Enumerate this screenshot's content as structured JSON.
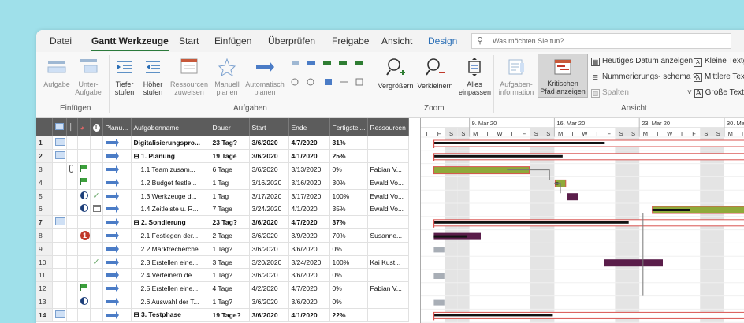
{
  "tabs": [
    "Datei",
    "Gantt Werkzeuge",
    "Start",
    "Einfügen",
    "Überprüfen",
    "Freigabe",
    "Ansicht",
    "Design"
  ],
  "tellme": {
    "icon": "lightbulb-icon",
    "placeholder": "Was möchten Sie tun?"
  },
  "ribbon": {
    "einfuegen": {
      "label": "Einfügen",
      "aufgabe": "Aufgabe",
      "unteraufgabe_1": "Unter-",
      "unteraufgabe_2": "Aufgabe"
    },
    "aufgaben": {
      "label": "Aufgaben",
      "tiefer_1": "Tiefer",
      "tiefer_2": "stufen",
      "hoeher_1": "Höher",
      "hoeher_2": "stufen",
      "ressourcen_1": "Ressourcen",
      "ressourcen_2": "zuweisen",
      "manuell_1": "Manuell",
      "manuell_2": "planen",
      "auto_1": "Automatisch",
      "auto_2": "planen"
    },
    "zoom": {
      "label": "Zoom",
      "vergroessern": "Vergrößern",
      "verkleinern": "Verkleinern",
      "alles_1": "Alles",
      "alles_2": "einpassen"
    },
    "ansicht": {
      "label": "Ansicht",
      "info_1": "Aufgaben-",
      "info_2": "information",
      "krit_1": "Kritischen",
      "krit_2": "Pfad anzeigen",
      "heutiges": "Heutiges Datum anzeigen",
      "nummerierung": "Nummerierungs- schema",
      "spalten": "Spalten",
      "kleine": "Kleine Textg",
      "mittlere": "Mittlere Text",
      "grosse": "Große Textgr"
    }
  },
  "table": {
    "headers": [
      "",
      "",
      "",
      "",
      "Planu...",
      "Aufgabenname",
      "Dauer",
      "Start",
      "Ende",
      "Fertigstel...",
      "Ressourcen"
    ],
    "rows": [
      {
        "id": "1",
        "i1": "note",
        "i2": "",
        "i3": "",
        "name": "Digitalisierungspro...",
        "dur": "23 Tag?",
        "start": "3/6/2020",
        "end": "4/7/2020",
        "pct": "31%",
        "res": "",
        "sum": true,
        "indent": 0
      },
      {
        "id": "2",
        "i1": "note",
        "i2": "",
        "i3": "",
        "name": "⊟ 1. Planung",
        "dur": "19 Tage",
        "start": "3/6/2020",
        "end": "4/1/2020",
        "pct": "25%",
        "res": "",
        "sum": true,
        "indent": 0
      },
      {
        "id": "3",
        "i1": "",
        "i2": "clip",
        "i3": "flag",
        "name": "1.1 Team zusam...",
        "dur": "6 Tage",
        "start": "3/6/2020",
        "end": "3/13/2020",
        "pct": "0%",
        "res": "Fabian V...",
        "sum": false,
        "indent": 1
      },
      {
        "id": "4",
        "i1": "",
        "i2": "",
        "i3": "flag",
        "name": "1.2 Budget festle...",
        "dur": "1 Tag",
        "start": "3/16/2020",
        "end": "3/16/2020",
        "pct": "30%",
        "res": "Ewald Vo...",
        "sum": false,
        "indent": 1
      },
      {
        "id": "5",
        "i1": "",
        "i2": "pie",
        "i3": "tick",
        "name": "1.3 Werkzeuge d...",
        "dur": "1 Tag",
        "start": "3/17/2020",
        "end": "3/17/2020",
        "pct": "100%",
        "res": "Ewald Vo...",
        "sum": false,
        "indent": 1
      },
      {
        "id": "6",
        "i1": "",
        "i2": "pie",
        "i3": "cal",
        "name": "1.4 Zeitleiste u. R...",
        "dur": "7 Tage",
        "start": "3/24/2020",
        "end": "4/1/2020",
        "pct": "35%",
        "res": "Ewald Vo...",
        "sum": false,
        "indent": 1
      },
      {
        "id": "7",
        "i1": "note",
        "i2": "",
        "i3": "",
        "name": "⊟ 2. Sondierung",
        "dur": "23 Tag?",
        "start": "3/6/2020",
        "end": "4/7/2020",
        "pct": "37%",
        "res": "",
        "sum": true,
        "indent": 0
      },
      {
        "id": "8",
        "i1": "",
        "i2": "alert",
        "i3": "",
        "name": "2.1 Festlegen der...",
        "dur": "2 Tage",
        "start": "3/6/2020",
        "end": "3/9/2020",
        "pct": "70%",
        "res": "Susanne...",
        "sum": false,
        "indent": 1
      },
      {
        "id": "9",
        "i1": "",
        "i2": "",
        "i3": "",
        "name": "2.2 Marktrecherche",
        "dur": "1 Tag?",
        "start": "3/6/2020",
        "end": "3/6/2020",
        "pct": "0%",
        "res": "",
        "sum": false,
        "indent": 1
      },
      {
        "id": "10",
        "i1": "",
        "i2": "",
        "i3": "tick",
        "name": "2.3 Erstellen eine...",
        "dur": "3 Tage",
        "start": "3/20/2020",
        "end": "3/24/2020",
        "pct": "100%",
        "res": "Kai Kust...",
        "sum": false,
        "indent": 1
      },
      {
        "id": "11",
        "i1": "",
        "i2": "",
        "i3": "",
        "name": "2.4 Verfeinern de...",
        "dur": "1 Tag?",
        "start": "3/6/2020",
        "end": "3/6/2020",
        "pct": "0%",
        "res": "",
        "sum": false,
        "indent": 1
      },
      {
        "id": "12",
        "i1": "",
        "i2": "",
        "i3": "flag",
        "name": "2.5 Erstellen eine...",
        "dur": "4 Tage",
        "start": "4/2/2020",
        "end": "4/7/2020",
        "pct": "0%",
        "res": "Fabian V...",
        "sum": false,
        "indent": 1
      },
      {
        "id": "13",
        "i1": "",
        "i2": "pie",
        "i3": "",
        "name": "2.6 Auswahl der T...",
        "dur": "1 Tag?",
        "start": "3/6/2020",
        "end": "3/6/2020",
        "pct": "0%",
        "res": "",
        "sum": false,
        "indent": 1
      },
      {
        "id": "14",
        "i1": "note",
        "i2": "",
        "i3": "",
        "name": "⊟ 3. Testphase",
        "dur": "19 Tage?",
        "start": "3/6/2020",
        "end": "4/1/2020",
        "pct": "22%",
        "res": "",
        "sum": true,
        "indent": 0
      }
    ]
  },
  "gantt": {
    "weeks": [
      "9. Mar 20",
      "16. Mar 20",
      "23. Mar 20",
      "30. Mar"
    ],
    "days": [
      "T",
      "F",
      "S",
      "S",
      "M",
      "T",
      "W",
      "T",
      "F",
      "S",
      "S",
      "M",
      "T",
      "W",
      "T",
      "F",
      "S",
      "S",
      "M",
      "T",
      "W",
      "T",
      "F",
      "S",
      "S",
      "M",
      "T"
    ],
    "first_day": "2020-03-05",
    "colors": {
      "critical_border": "#d9534f",
      "green": "#8faa3a",
      "purple": "#5a1d4a",
      "summary": "#111111",
      "gray": "#a8aeb6",
      "weekend": "#e4e4e4"
    }
  }
}
